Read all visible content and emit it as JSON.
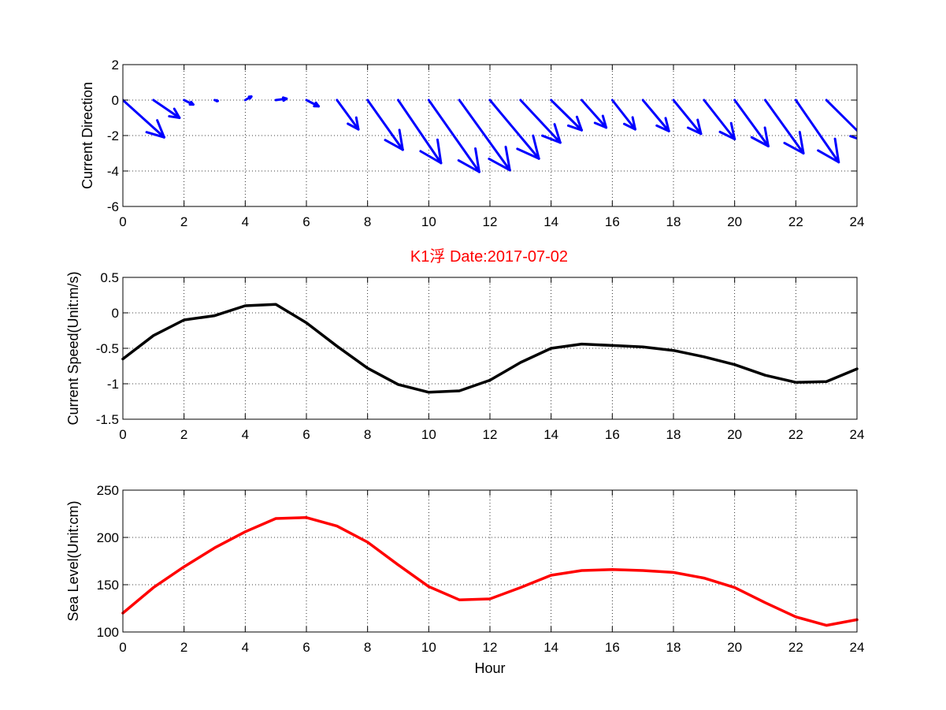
{
  "figure": {
    "background": "#ffffff",
    "title": "K1浮   Date:2017-07-02",
    "title_color": "#ff0000"
  },
  "chart_data": [
    {
      "type": "quiver",
      "ylabel": "Current Direction",
      "xlabel": "",
      "xlim": [
        0,
        24
      ],
      "ylim": [
        -6,
        2
      ],
      "xticks": [
        0,
        2,
        4,
        6,
        8,
        10,
        12,
        14,
        16,
        18,
        20,
        22,
        24
      ],
      "yticks": [
        -6,
        -4,
        -2,
        0,
        2
      ],
      "grid": true,
      "color": "#0000ff",
      "arrows": [
        {
          "x": 0,
          "y": 0,
          "u": 1.35,
          "v": -2.1
        },
        {
          "x": 1,
          "y": 0,
          "u": 0.85,
          "v": -1.0
        },
        {
          "x": 2,
          "y": 0,
          "u": 0.3,
          "v": -0.25
        },
        {
          "x": 3,
          "y": 0,
          "u": 0.1,
          "v": -0.05
        },
        {
          "x": 4,
          "y": 0,
          "u": 0.2,
          "v": 0.2
        },
        {
          "x": 5,
          "y": 0,
          "u": 0.35,
          "v": 0.08
        },
        {
          "x": 6,
          "y": 0,
          "u": 0.4,
          "v": -0.35
        },
        {
          "x": 7,
          "y": 0,
          "u": 0.7,
          "v": -1.65
        },
        {
          "x": 8,
          "y": 0,
          "u": 1.15,
          "v": -2.8
        },
        {
          "x": 9,
          "y": 0,
          "u": 1.4,
          "v": -3.55
        },
        {
          "x": 10,
          "y": 0,
          "u": 1.65,
          "v": -4.05
        },
        {
          "x": 11,
          "y": 0,
          "u": 1.65,
          "v": -3.95
        },
        {
          "x": 12,
          "y": 0,
          "u": 1.6,
          "v": -3.3
        },
        {
          "x": 13,
          "y": 0,
          "u": 1.3,
          "v": -2.4
        },
        {
          "x": 14,
          "y": 0,
          "u": 1.0,
          "v": -1.7
        },
        {
          "x": 15,
          "y": 0,
          "u": 0.8,
          "v": -1.55
        },
        {
          "x": 16,
          "y": 0,
          "u": 0.75,
          "v": -1.65
        },
        {
          "x": 17,
          "y": 0,
          "u": 0.85,
          "v": -1.75
        },
        {
          "x": 18,
          "y": 0,
          "u": 0.9,
          "v": -1.9
        },
        {
          "x": 19,
          "y": 0,
          "u": 1.0,
          "v": -2.2
        },
        {
          "x": 20,
          "y": 0,
          "u": 1.1,
          "v": -2.6
        },
        {
          "x": 21,
          "y": 0,
          "u": 1.25,
          "v": -3.0
        },
        {
          "x": 22,
          "y": 0,
          "u": 1.4,
          "v": -3.5
        },
        {
          "x": 23,
          "y": 0,
          "u": 1.4,
          "v": -2.4
        }
      ]
    },
    {
      "type": "line",
      "ylabel": "Current Speed(Unit:m/s)",
      "xlabel": "",
      "xlim": [
        0,
        24
      ],
      "ylim": [
        -1.5,
        0.5
      ],
      "xticks": [
        0,
        2,
        4,
        6,
        8,
        10,
        12,
        14,
        16,
        18,
        20,
        22,
        24
      ],
      "yticks": [
        -1.5,
        -1,
        -0.5,
        0,
        0.5
      ],
      "grid": true,
      "color": "#000000",
      "x": [
        0,
        1,
        2,
        3,
        4,
        5,
        6,
        7,
        8,
        9,
        10,
        11,
        12,
        13,
        14,
        15,
        16,
        17,
        18,
        19,
        20,
        21,
        22,
        23,
        24
      ],
      "values": [
        -0.65,
        -0.32,
        -0.1,
        -0.04,
        0.1,
        0.12,
        -0.14,
        -0.47,
        -0.78,
        -1.01,
        -1.12,
        -1.1,
        -0.95,
        -0.7,
        -0.5,
        -0.44,
        -0.46,
        -0.48,
        -0.53,
        -0.62,
        -0.73,
        -0.88,
        -0.98,
        -0.97,
        -0.79
      ]
    },
    {
      "type": "line",
      "ylabel": "Sea Level(Unit:cm)",
      "xlabel": "Hour",
      "xlim": [
        0,
        24
      ],
      "ylim": [
        100,
        250
      ],
      "xticks": [
        0,
        2,
        4,
        6,
        8,
        10,
        12,
        14,
        16,
        18,
        20,
        22,
        24
      ],
      "yticks": [
        100,
        150,
        200,
        250
      ],
      "grid": true,
      "color": "#ff0000",
      "x": [
        0,
        1,
        2,
        3,
        4,
        5,
        6,
        7,
        8,
        9,
        10,
        11,
        12,
        13,
        14,
        15,
        16,
        17,
        18,
        19,
        20,
        21,
        22,
        23,
        24
      ],
      "values": [
        120,
        147,
        169,
        189,
        206,
        220,
        221,
        212,
        195,
        171,
        148,
        134,
        135,
        147,
        160,
        165,
        166,
        165,
        163,
        157,
        147,
        131,
        116,
        107,
        113
      ]
    }
  ]
}
